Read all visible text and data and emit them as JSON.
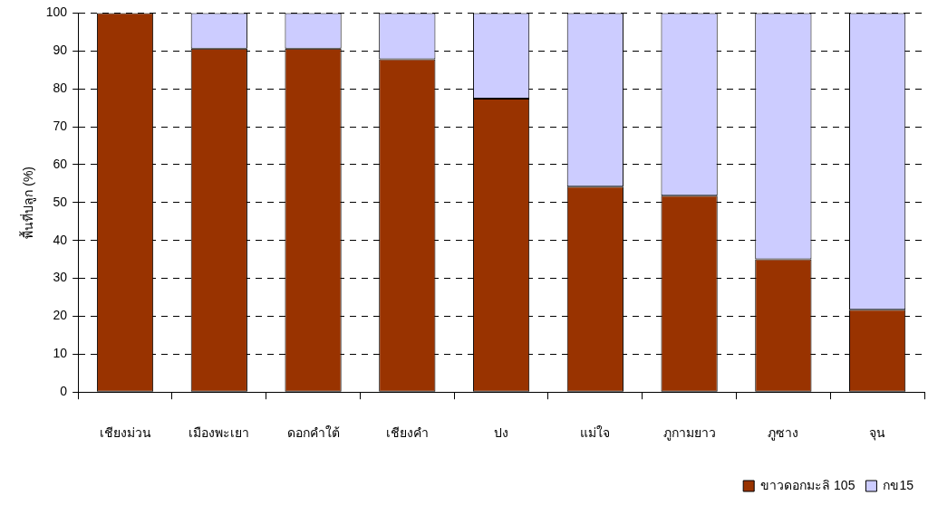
{
  "chart_data": {
    "type": "bar",
    "stacked": true,
    "ylabel": "พื้นที่ปลูก (%)",
    "categories": [
      "เชียงม่วน",
      "เมืองพะเยา",
      "ดอกคำใต้",
      "เชียงคำ",
      "ปง",
      "แม่ใจ",
      "ภูกามยาว",
      "ภูซาง",
      "จุน"
    ],
    "series": [
      {
        "name": "ขาวดอกมะลิ 105",
        "color": "#993300",
        "values": [
          100,
          90.6,
          90.6,
          87.8,
          77.4,
          54.2,
          51.8,
          35,
          21.7
        ]
      },
      {
        "name": "กข15",
        "color": "#ccccff",
        "values": [
          0,
          9.4,
          9.4,
          12.2,
          22.6,
          45.8,
          48.2,
          65,
          78.3
        ]
      }
    ],
    "ylim": [
      0,
      100
    ],
    "yticks": [
      0,
      10,
      20,
      30,
      40,
      50,
      60,
      70,
      80,
      90,
      100
    ],
    "grid": "y",
    "legend": "bottom right"
  }
}
